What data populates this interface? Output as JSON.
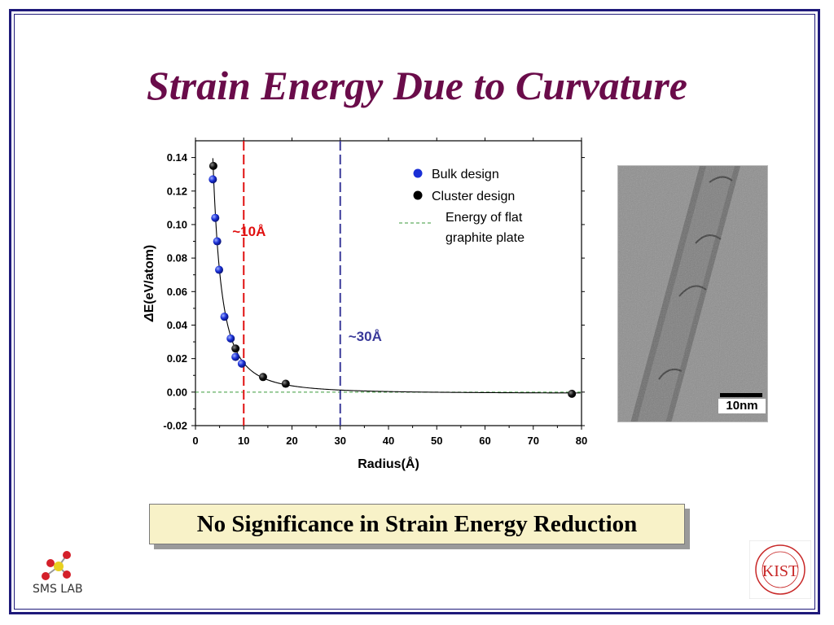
{
  "slide": {
    "title": "Strain Energy Due to Curvature",
    "conclusion": "No Significance in Strain Energy Reduction",
    "lab_logo_text": "SMS LAB",
    "institute_logo": "KIST",
    "institute_logo_text": "KIST"
  },
  "chart_data": {
    "type": "scatter",
    "xlabel": "Radius(Å)",
    "ylabel_symbol": "Δ",
    "ylabel_text": "E(eV/atom)",
    "xlim": [
      0,
      80
    ],
    "ylim": [
      -0.02,
      0.15
    ],
    "x_ticks": [
      0,
      10,
      20,
      30,
      40,
      50,
      60,
      70,
      80
    ],
    "y_ticks": [
      -0.02,
      0.0,
      0.02,
      0.04,
      0.06,
      0.08,
      0.1,
      0.12,
      0.14
    ],
    "y_tick_labels": [
      "-0.02",
      "0.00",
      "0.02",
      "0.04",
      "0.06",
      "0.08",
      "0.10",
      "0.12",
      "0.14"
    ],
    "x_tick_labels": [
      "0",
      "10",
      "20",
      "30",
      "40",
      "50",
      "60",
      "70",
      "80"
    ],
    "series": [
      {
        "name": "Bulk design",
        "color": "#1a2fd6",
        "points": [
          [
            3.6,
            0.127
          ],
          [
            4.1,
            0.104
          ],
          [
            4.5,
            0.09
          ],
          [
            4.9,
            0.073
          ],
          [
            6.0,
            0.045
          ],
          [
            7.3,
            0.032
          ],
          [
            8.3,
            0.021
          ],
          [
            9.6,
            0.017
          ]
        ]
      },
      {
        "name": "Cluster design",
        "color": "#000000",
        "points": [
          [
            3.7,
            0.135
          ],
          [
            8.3,
            0.026
          ],
          [
            14.0,
            0.009
          ],
          [
            18.7,
            0.005
          ],
          [
            78.0,
            -0.001
          ]
        ]
      }
    ],
    "reference_line": {
      "name_line1": "Energy of flat",
      "name_line2": "graphite plate",
      "y": 0.0,
      "color": "#3a9a3a"
    },
    "fit_curve_color": "#000000",
    "markers": [
      {
        "x": 10,
        "label": "~10Å",
        "color": "#e01010"
      },
      {
        "x": 30,
        "label": "~30Å",
        "color": "#3a3a9a"
      }
    ],
    "legend_position": "top-right"
  },
  "image": {
    "scale_bar_label": "10nm"
  },
  "colors": {
    "title": "#6a0c4a",
    "frame": "#1f1a7a",
    "conclusion_bg": "#f8f2c8"
  }
}
